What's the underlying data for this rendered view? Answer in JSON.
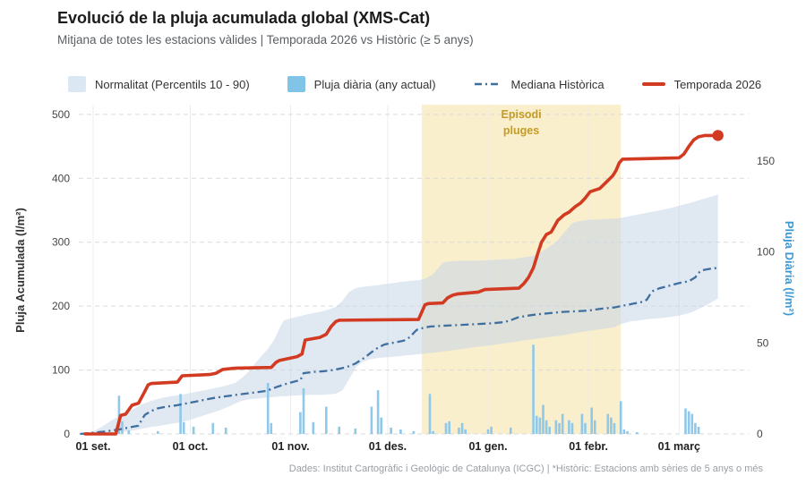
{
  "header": {
    "title": "Evolució de la pluja acumulada global (XMS-Cat)",
    "subtitle": "Mitjana de totes les estacions vàlides | Temporada 2026 vs Històric (≥ 5 anys)"
  },
  "legend": {
    "items": [
      {
        "label": "Normalitat (Percentils 10 - 90)"
      },
      {
        "label": "Pluja diària (any actual)"
      },
      {
        "label": "Mediana Històrica"
      },
      {
        "label": "Temporada 2026"
      }
    ]
  },
  "footer": {
    "credit": "Dades: Institut Cartogràfic i Geològic de Catalunya (ICGC) | *Històric: Estacions amb sèries de 5 anys o més"
  },
  "colors": {
    "season_line": "#d23b22",
    "median_line": "#3f6f9f",
    "band_fill": "rgba(199,213,232,0.55)",
    "bars_fill": "#8fc8e9",
    "highlight_fill": "#faefcc",
    "highlight_text": "#c49b26",
    "right_axis_text": "#3b9ad8",
    "grid_h": "#d9d9d9",
    "grid_v": "#ececec"
  },
  "chart_data": {
    "type": "line",
    "title": "Evolució de la pluja acumulada global (XMS-Cat)",
    "x_unit": "days since 01 set.",
    "x_ticks": [
      {
        "day": 0,
        "label": "01 set."
      },
      {
        "day": 30,
        "label": "01 oct."
      },
      {
        "day": 61,
        "label": "01 nov."
      },
      {
        "day": 91,
        "label": "01 des."
      },
      {
        "day": 122,
        "label": "01 gen."
      },
      {
        "day": 153,
        "label": "01 febr."
      },
      {
        "day": 181,
        "label": "01 març"
      }
    ],
    "y_left": {
      "label": "Pluja Acumulada (l/m²)",
      "ticks": [
        0,
        100,
        200,
        300,
        400,
        500
      ]
    },
    "y_right": {
      "label": "Pluja Diària (l/m²)",
      "ticks": [
        0,
        50,
        100,
        150
      ]
    },
    "highlight": {
      "label_line1": "Episodi",
      "label_line2": "pluges",
      "from_day": 101.5,
      "to_day": 163
    },
    "series": {
      "band": {
        "name": "Normalitat (Percentils 10 - 90)",
        "points": [
          [
            -4,
            0,
            0
          ],
          [
            0,
            0,
            4
          ],
          [
            3,
            1,
            12
          ],
          [
            6,
            2,
            22
          ],
          [
            9,
            3,
            30
          ],
          [
            12,
            5,
            38
          ],
          [
            15,
            8,
            46
          ],
          [
            18,
            11,
            52
          ],
          [
            21,
            13,
            56
          ],
          [
            24,
            16,
            59
          ],
          [
            27,
            18,
            61
          ],
          [
            30,
            22,
            64
          ],
          [
            33,
            27,
            67
          ],
          [
            36,
            32,
            70
          ],
          [
            39,
            37,
            73
          ],
          [
            42,
            43,
            77
          ],
          [
            44,
            48,
            80
          ],
          [
            46,
            52,
            88
          ],
          [
            48,
            54,
            97
          ],
          [
            50,
            55,
            110
          ],
          [
            52,
            56,
            122
          ],
          [
            54,
            57,
            133
          ],
          [
            56,
            58,
            148
          ],
          [
            58,
            59,
            170
          ],
          [
            59,
            59,
            178
          ],
          [
            62,
            60,
            182
          ],
          [
            66,
            61,
            187
          ],
          [
            70,
            61,
            191
          ],
          [
            73,
            62,
            195
          ],
          [
            75,
            63,
            199
          ],
          [
            77,
            68,
            208
          ],
          [
            79,
            85,
            222
          ],
          [
            81,
            103,
            228
          ],
          [
            83,
            112,
            230
          ],
          [
            85,
            116,
            231
          ],
          [
            88,
            119,
            233
          ],
          [
            91,
            120,
            235
          ],
          [
            95,
            122,
            238
          ],
          [
            99,
            124,
            240
          ],
          [
            101,
            125,
            241
          ],
          [
            103,
            126,
            244
          ],
          [
            105,
            127,
            250
          ],
          [
            107,
            128,
            262
          ],
          [
            108,
            129,
            268
          ],
          [
            110,
            130,
            270
          ],
          [
            114,
            133,
            271
          ],
          [
            118,
            136,
            271
          ],
          [
            122,
            138,
            272
          ],
          [
            126,
            141,
            273
          ],
          [
            130,
            144,
            274
          ],
          [
            134,
            147,
            277
          ],
          [
            137,
            149,
            280
          ],
          [
            140,
            151,
            290
          ],
          [
            143,
            153,
            300
          ],
          [
            146,
            155,
            318
          ],
          [
            148,
            157,
            330
          ],
          [
            150,
            159,
            333
          ],
          [
            153,
            161,
            335
          ],
          [
            157,
            164,
            336
          ],
          [
            161,
            167,
            337
          ],
          [
            163,
            172,
            338
          ],
          [
            166,
            176,
            341
          ],
          [
            169,
            178,
            344
          ],
          [
            172,
            180,
            347
          ],
          [
            175,
            181,
            350
          ],
          [
            178,
            183,
            353
          ],
          [
            181,
            185,
            357
          ],
          [
            184,
            189,
            361
          ],
          [
            186,
            193,
            364
          ],
          [
            188,
            198,
            367
          ],
          [
            190,
            203,
            370
          ],
          [
            192,
            209,
            373
          ],
          [
            193,
            212,
            375
          ]
        ]
      },
      "median": {
        "name": "Mediana Històrica",
        "points": [
          [
            -4,
            0
          ],
          [
            0,
            2
          ],
          [
            4,
            4
          ],
          [
            8,
            7
          ],
          [
            12,
            11
          ],
          [
            14,
            13
          ],
          [
            15,
            22
          ],
          [
            16,
            30
          ],
          [
            18,
            36
          ],
          [
            20,
            40
          ],
          [
            23,
            43
          ],
          [
            26,
            45
          ],
          [
            29,
            48
          ],
          [
            32,
            51
          ],
          [
            35,
            54
          ],
          [
            38,
            57
          ],
          [
            41,
            59
          ],
          [
            44,
            61
          ],
          [
            47,
            63
          ],
          [
            50,
            65
          ],
          [
            53,
            67
          ],
          [
            55,
            70
          ],
          [
            57,
            74
          ],
          [
            60,
            79
          ],
          [
            63,
            83
          ],
          [
            64,
            84
          ],
          [
            65,
            95
          ],
          [
            68,
            97
          ],
          [
            71,
            98
          ],
          [
            74,
            100
          ],
          [
            77,
            103
          ],
          [
            79,
            106
          ],
          [
            81,
            110
          ],
          [
            84,
            120
          ],
          [
            86,
            128
          ],
          [
            88,
            135
          ],
          [
            90,
            140
          ],
          [
            93,
            143
          ],
          [
            96,
            146
          ],
          [
            98,
            152
          ],
          [
            99,
            158
          ],
          [
            100,
            163
          ],
          [
            102,
            166
          ],
          [
            104,
            168
          ],
          [
            107,
            169
          ],
          [
            111,
            170
          ],
          [
            115,
            171
          ],
          [
            119,
            172
          ],
          [
            123,
            173
          ],
          [
            127,
            175
          ],
          [
            129,
            178
          ],
          [
            131,
            182
          ],
          [
            134,
            185
          ],
          [
            137,
            187
          ],
          [
            141,
            189
          ],
          [
            145,
            191
          ],
          [
            149,
            192
          ],
          [
            153,
            193
          ],
          [
            157,
            196
          ],
          [
            161,
            198
          ],
          [
            164,
            201
          ],
          [
            167,
            204
          ],
          [
            170,
            207
          ],
          [
            171,
            210
          ],
          [
            172,
            218
          ],
          [
            173,
            224
          ],
          [
            175,
            228
          ],
          [
            178,
            232
          ],
          [
            181,
            236
          ],
          [
            184,
            239
          ],
          [
            186,
            245
          ],
          [
            187,
            252
          ],
          [
            188,
            256
          ],
          [
            190,
            258
          ],
          [
            193,
            260
          ]
        ]
      },
      "season": {
        "name": "Temporada 2026",
        "points": [
          [
            -2.5,
            0
          ],
          [
            7,
            0
          ],
          [
            8.5,
            29
          ],
          [
            10,
            31
          ],
          [
            12,
            45
          ],
          [
            14,
            48
          ],
          [
            15.5,
            62
          ],
          [
            17,
            77
          ],
          [
            18,
            79
          ],
          [
            26,
            81
          ],
          [
            27.5,
            91
          ],
          [
            36,
            93
          ],
          [
            38,
            95
          ],
          [
            40,
            101
          ],
          [
            44,
            103
          ],
          [
            55,
            104
          ],
          [
            56.5,
            112
          ],
          [
            57.5,
            115
          ],
          [
            63,
            121
          ],
          [
            64.5,
            125
          ],
          [
            65.5,
            147
          ],
          [
            70,
            151
          ],
          [
            72,
            156
          ],
          [
            73.5,
            168
          ],
          [
            75,
            176
          ],
          [
            76,
            178
          ],
          [
            100.5,
            179
          ],
          [
            102.5,
            202
          ],
          [
            103.5,
            204
          ],
          [
            108,
            205
          ],
          [
            109.5,
            213
          ],
          [
            111,
            217
          ],
          [
            112.5,
            219
          ],
          [
            119,
            222
          ],
          [
            121,
            226
          ],
          [
            131.5,
            228
          ],
          [
            133,
            235
          ],
          [
            134.5,
            245
          ],
          [
            136,
            260
          ],
          [
            137.5,
            285
          ],
          [
            138.5,
            300
          ],
          [
            140,
            312
          ],
          [
            141.5,
            316
          ],
          [
            143.5,
            334
          ],
          [
            145.5,
            343
          ],
          [
            147,
            347
          ],
          [
            149,
            356
          ],
          [
            150.5,
            361
          ],
          [
            152,
            369
          ],
          [
            153.5,
            379
          ],
          [
            156.5,
            384
          ],
          [
            158.5,
            394
          ],
          [
            160.5,
            404
          ],
          [
            161.5,
            412
          ],
          [
            162.5,
            424
          ],
          [
            163.5,
            430
          ],
          [
            181,
            432
          ],
          [
            182.5,
            438
          ],
          [
            184,
            450
          ],
          [
            185.5,
            460
          ],
          [
            187,
            465
          ],
          [
            189,
            467
          ],
          [
            193,
            467
          ]
        ]
      },
      "daily_bars": {
        "name": "Pluja diària (any actual)",
        "axis": "right",
        "points": [
          [
            8,
            21
          ],
          [
            9,
            7
          ],
          [
            11,
            2
          ],
          [
            20,
            1.5
          ],
          [
            27,
            22
          ],
          [
            28,
            6.5
          ],
          [
            31,
            4
          ],
          [
            37,
            6
          ],
          [
            41,
            3.5
          ],
          [
            54,
            28
          ],
          [
            55,
            6
          ],
          [
            64,
            12
          ],
          [
            65,
            25
          ],
          [
            68,
            6.5
          ],
          [
            72,
            15
          ],
          [
            76,
            4
          ],
          [
            81,
            3
          ],
          [
            86,
            15
          ],
          [
            88,
            24
          ],
          [
            89,
            9
          ],
          [
            92,
            3.5
          ],
          [
            95,
            2.5
          ],
          [
            99,
            1.5
          ],
          [
            104,
            22
          ],
          [
            105,
            1.5
          ],
          [
            109,
            6
          ],
          [
            110,
            7
          ],
          [
            113,
            3.5
          ],
          [
            114,
            6
          ],
          [
            115,
            2.5
          ],
          [
            122,
            2.5
          ],
          [
            123,
            4
          ],
          [
            129,
            3.5
          ],
          [
            136,
            49
          ],
          [
            137,
            10
          ],
          [
            138,
            9
          ],
          [
            139,
            16
          ],
          [
            140,
            7.5
          ],
          [
            141,
            4
          ],
          [
            143,
            7.5
          ],
          [
            144,
            6
          ],
          [
            145,
            11
          ],
          [
            147,
            7.5
          ],
          [
            148,
            6
          ],
          [
            151,
            11
          ],
          [
            152,
            6
          ],
          [
            154,
            14.5
          ],
          [
            155,
            7.5
          ],
          [
            159,
            11
          ],
          [
            160,
            9
          ],
          [
            161,
            6
          ],
          [
            163,
            18
          ],
          [
            164,
            2.5
          ],
          [
            165,
            1.5
          ],
          [
            168,
            1
          ],
          [
            183,
            14
          ],
          [
            184,
            12.5
          ],
          [
            185,
            11
          ],
          [
            186,
            6
          ],
          [
            187,
            4
          ]
        ]
      }
    }
  }
}
